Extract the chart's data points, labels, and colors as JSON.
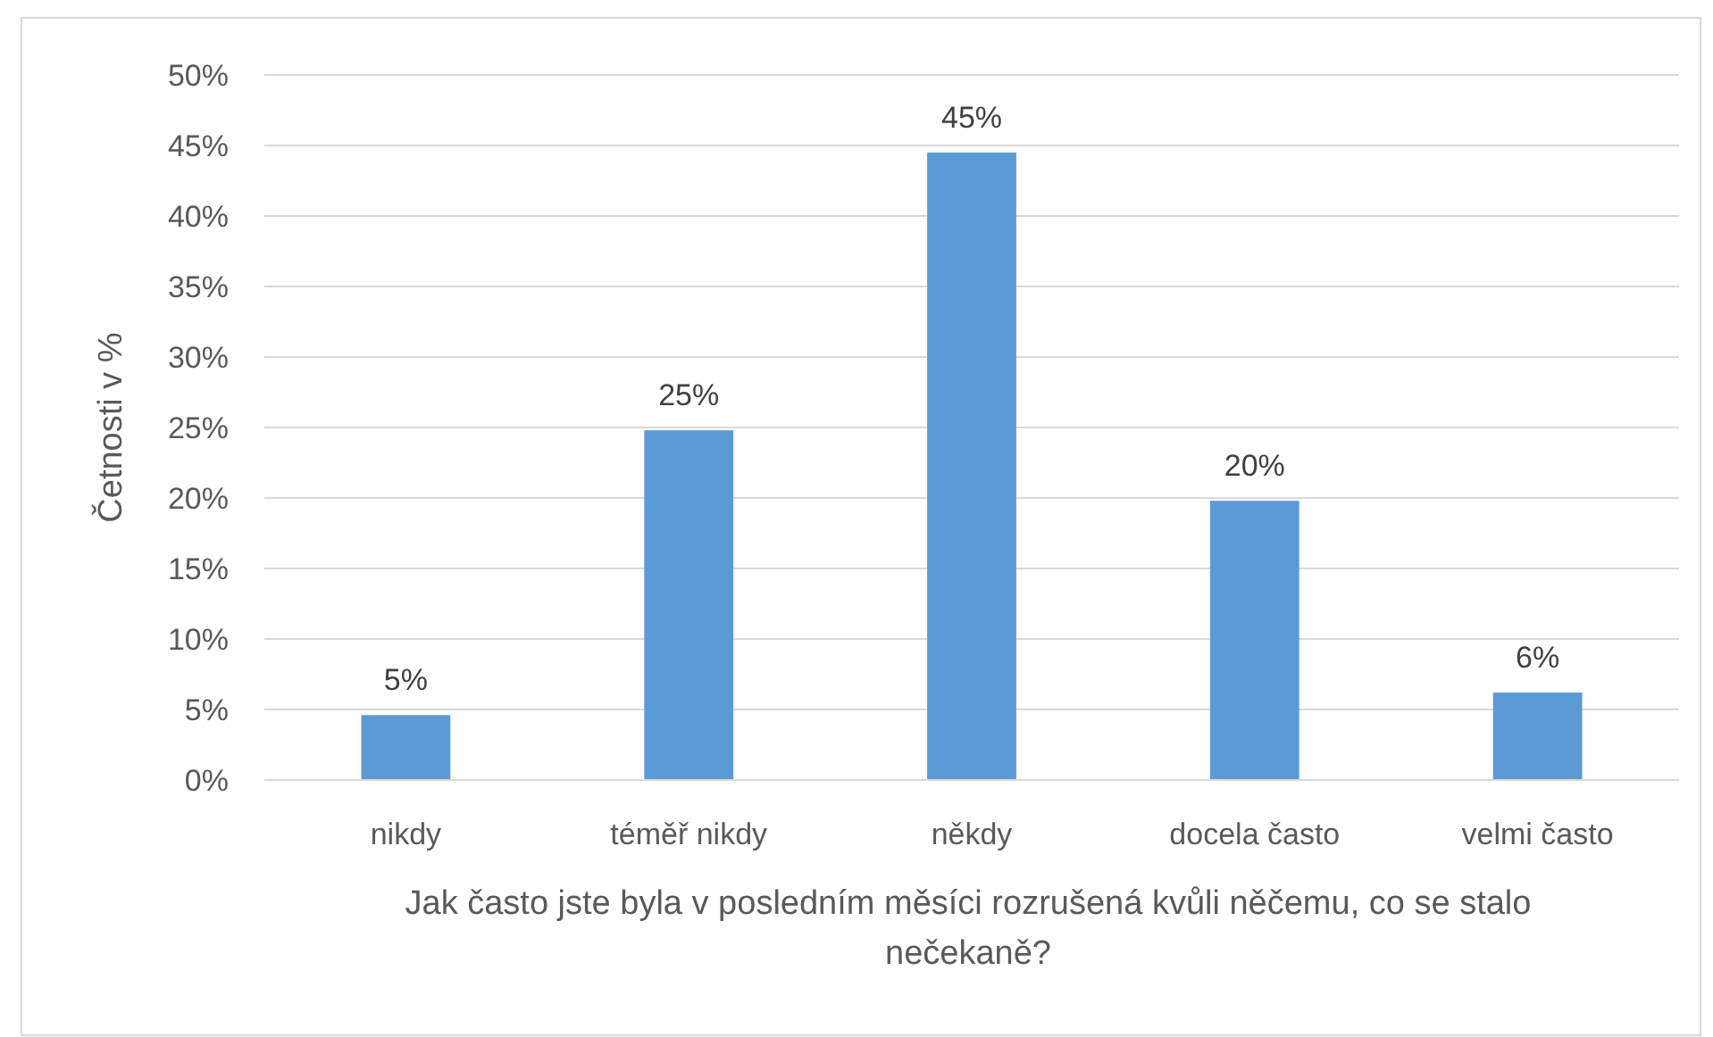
{
  "chart_data": {
    "type": "bar",
    "ylabel": "Četnosti v %",
    "xlabel": "Jak často jste byla v posledním měsíci rozrušená kvůli něčemu, co se stalo nečekaně?",
    "categories": [
      "nikdy",
      "téměř nikdy",
      "někdy",
      "docela často",
      "velmi často"
    ],
    "values": [
      4.6,
      24.8,
      44.5,
      19.8,
      6.2
    ],
    "value_labels": [
      "5%",
      "25%",
      "45%",
      "20%",
      "6%"
    ],
    "color": "#5b9bd5",
    "ylim": [
      0,
      50
    ],
    "yticks": [
      {
        "value": 0,
        "label": "0%"
      },
      {
        "value": 5,
        "label": "5%"
      },
      {
        "value": 10,
        "label": "10%"
      },
      {
        "value": 15,
        "label": "15%"
      },
      {
        "value": 20,
        "label": "20%"
      },
      {
        "value": 25,
        "label": "25%"
      },
      {
        "value": 30,
        "label": "30%"
      },
      {
        "value": 35,
        "label": "35%"
      },
      {
        "value": 40,
        "label": "40%"
      },
      {
        "value": 45,
        "label": "45%"
      },
      {
        "value": 50,
        "label": "50%"
      }
    ],
    "grid": "y"
  }
}
